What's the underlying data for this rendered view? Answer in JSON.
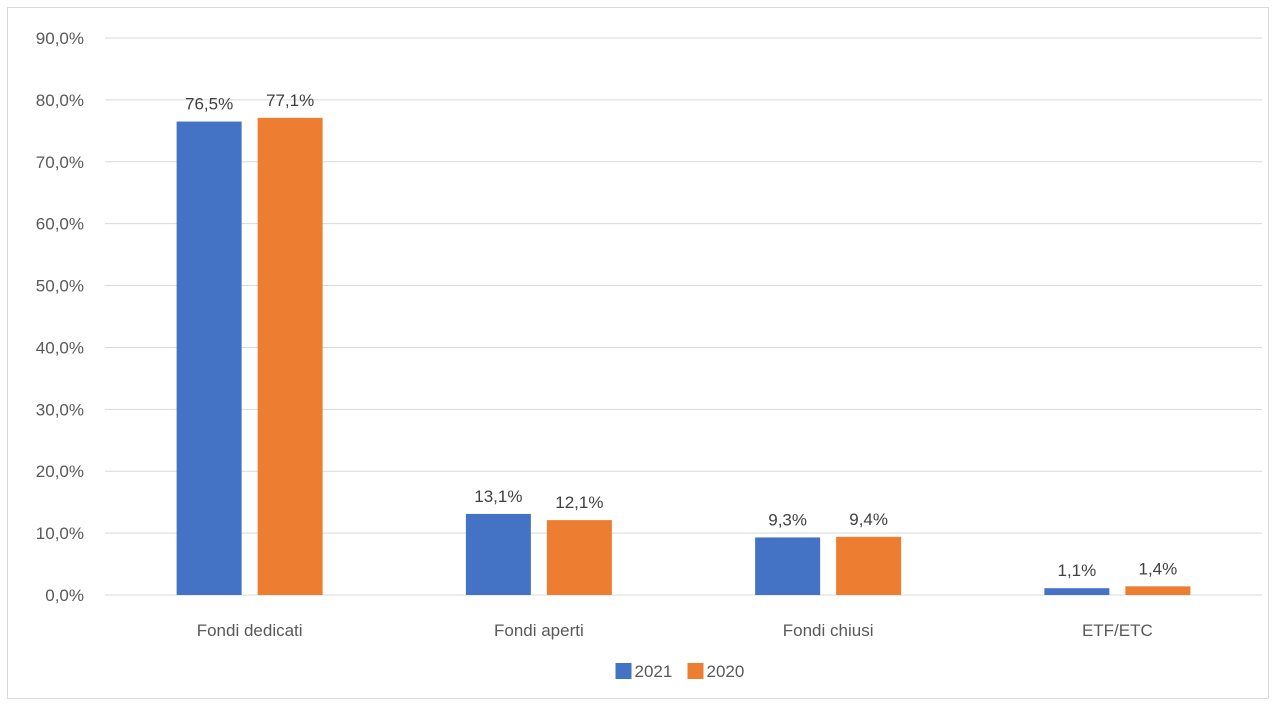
{
  "chart_data": {
    "type": "bar",
    "title": "",
    "xlabel": "",
    "ylabel": "",
    "categories": [
      "Fondi dedicati",
      "Fondi aperti",
      "Fondi chiusi",
      "ETF/ETC"
    ],
    "series": [
      {
        "name": "2021",
        "color": "#4472c4",
        "values": [
          76.5,
          13.1,
          9.3,
          1.1
        ],
        "labels": [
          "76,5%",
          "13,1%",
          "9,3%",
          "1,1%"
        ]
      },
      {
        "name": "2020",
        "color": "#ed7d31",
        "values": [
          77.1,
          12.1,
          9.4,
          1.4
        ],
        "labels": [
          "77,1%",
          "12,1%",
          "9,4%",
          "1,4%"
        ]
      }
    ],
    "ylim": [
      0,
      90
    ],
    "yticks": [
      0,
      10,
      20,
      30,
      40,
      50,
      60,
      70,
      80,
      90
    ],
    "ytick_labels": [
      "0,0%",
      "10,0%",
      "20,0%",
      "30,0%",
      "40,0%",
      "50,0%",
      "60,0%",
      "70,0%",
      "80,0%",
      "90,0%"
    ],
    "grid": true,
    "legend": "bottom"
  }
}
